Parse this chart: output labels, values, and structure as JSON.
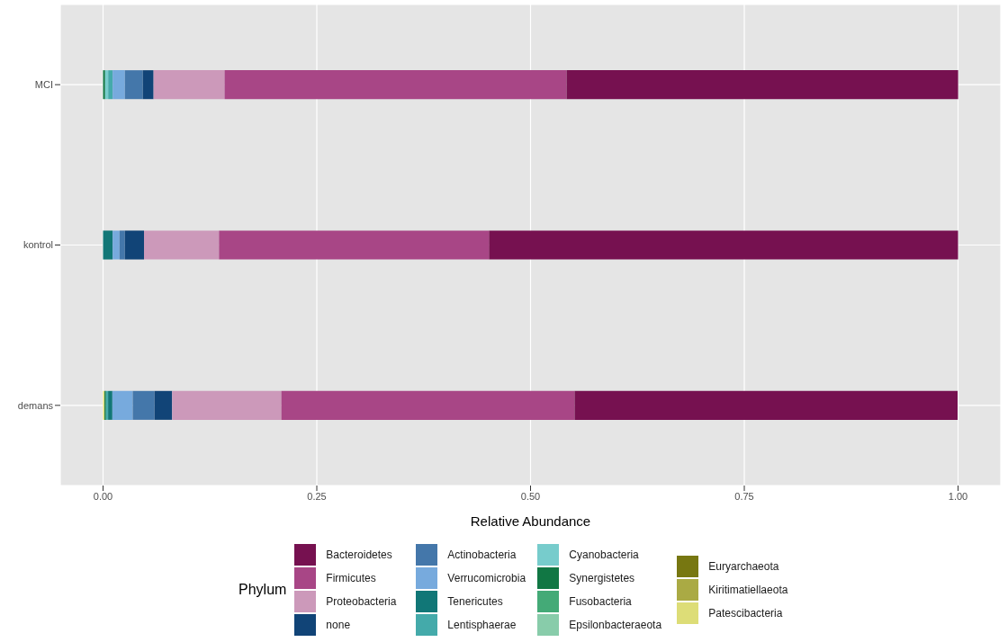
{
  "chart_data": {
    "type": "bar",
    "orientation": "horizontal",
    "stacked": true,
    "xlabel": "Relative Abundance",
    "legend_title": "Phylum",
    "legend": "bottom",
    "grid": true,
    "categories": [
      "MCI",
      "kontrol",
      "demans"
    ],
    "xlim": [
      -0.05,
      1.05
    ],
    "xticks": [
      {
        "value": 0,
        "label": "0.00"
      },
      {
        "value": 0.25,
        "label": "0.25"
      },
      {
        "value": 0.5,
        "label": "0.50"
      },
      {
        "value": 0.75,
        "label": "0.75"
      },
      {
        "value": 1,
        "label": "1.00"
      }
    ],
    "series": [
      {
        "name": "Patescibacteria",
        "color": "#dddd77",
        "values": [
          0,
          0,
          0.0017
        ]
      },
      {
        "name": "Kiritimatiellaeota",
        "color": "#aaaa44",
        "values": [
          0,
          0,
          0
        ]
      },
      {
        "name": "Euryarchaeota",
        "color": "#777711",
        "values": [
          0,
          0,
          0
        ]
      },
      {
        "name": "Epsilonbacteraeota",
        "color": "#88ccaa",
        "values": [
          0,
          0,
          0
        ]
      },
      {
        "name": "Fusobacteria",
        "color": "#44aa77",
        "values": [
          0,
          0,
          0
        ]
      },
      {
        "name": "Synergistetes",
        "color": "#117744",
        "values": [
          0.0024,
          0,
          0.0017
        ]
      },
      {
        "name": "Cyanobacteria",
        "color": "#77cccc",
        "values": [
          0.0036,
          0,
          0
        ]
      },
      {
        "name": "Lentisphaerae",
        "color": "#44aaaa",
        "values": [
          0.0052,
          0,
          0.0025
        ]
      },
      {
        "name": "Tenericutes",
        "color": "#117777",
        "values": [
          0,
          0.0112,
          0.005
        ]
      },
      {
        "name": "Verrucomicrobia",
        "color": "#77aadd",
        "values": [
          0.0143,
          0.008,
          0.0238
        ]
      },
      {
        "name": "Actinobacteria",
        "color": "#4477aa",
        "values": [
          0.021,
          0.0063,
          0.0255
        ]
      },
      {
        "name": "none",
        "color": "#114477",
        "values": [
          0.0126,
          0.0224,
          0.0206
        ]
      },
      {
        "name": "Proteobacteria",
        "color": "#cc99ba",
        "values": [
          0.083,
          0.0877,
          0.1277
        ]
      },
      {
        "name": "Firmicutes",
        "color": "#a84686",
        "values": [
          0.4,
          0.3158,
          0.343
        ]
      },
      {
        "name": "Bacteroidetes",
        "color": "#761150",
        "values": [
          0.458,
          0.5486,
          0.448
        ]
      }
    ]
  }
}
